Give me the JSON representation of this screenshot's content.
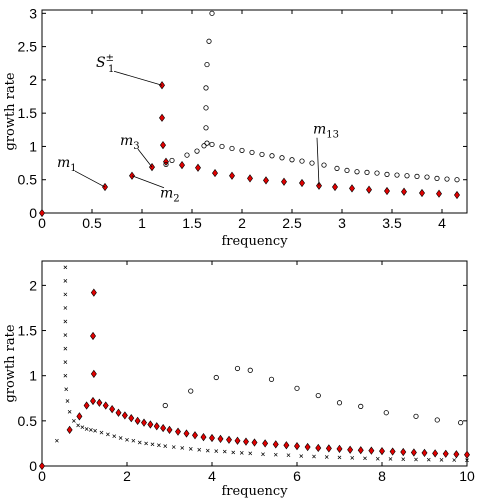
{
  "chart_data": [
    {
      "type": "scatter",
      "xlabel": "frequency",
      "ylabel": "growth rate",
      "xlim": [
        0,
        4.25
      ],
      "ylim": [
        0,
        3.05
      ],
      "xticks": [
        0,
        0.5,
        1,
        1.5,
        2,
        2.5,
        3,
        3.5,
        4
      ],
      "yticks": [
        0,
        0.5,
        1,
        1.5,
        2,
        2.5,
        3
      ],
      "xtick_labels": [
        "0",
        "0.5",
        "1",
        "1.5",
        "2",
        "2.5",
        "3",
        "3.5",
        "4"
      ],
      "ytick_labels": [
        "0",
        "0.5",
        "1",
        "1.5",
        "2",
        "2.5",
        "3"
      ],
      "grid": false,
      "series": [
        {
          "marker": "diamond",
          "color": "#e00000",
          "points": [
            [
              0,
              0
            ],
            [
              0.63,
              0.39
            ],
            [
              0.9,
              0.56
            ],
            [
              1.1,
              0.69
            ],
            [
              1.2,
              1.92
            ],
            [
              1.2,
              1.43
            ],
            [
              1.21,
              1.02
            ],
            [
              1.24,
              0.77
            ],
            [
              1.4,
              0.72
            ],
            [
              1.56,
              0.68
            ],
            [
              1.73,
              0.6
            ],
            [
              1.9,
              0.56
            ],
            [
              2.08,
              0.52
            ],
            [
              2.24,
              0.49
            ],
            [
              2.42,
              0.47
            ],
            [
              2.6,
              0.45
            ],
            [
              2.77,
              0.41
            ],
            [
              2.93,
              0.39
            ],
            [
              3.1,
              0.37
            ],
            [
              3.27,
              0.35
            ],
            [
              3.45,
              0.33
            ],
            [
              3.62,
              0.32
            ],
            [
              3.8,
              0.3
            ],
            [
              3.97,
              0.29
            ],
            [
              4.15,
              0.27
            ]
          ]
        },
        {
          "marker": "circle",
          "color": "#000000",
          "points": [
            [
              1.24,
              0.73
            ],
            [
              1.3,
              0.79
            ],
            [
              1.45,
              0.87
            ],
            [
              1.55,
              0.93
            ],
            [
              1.62,
              1.01
            ],
            [
              1.65,
              1.05
            ],
            [
              1.7,
              3.0
            ],
            [
              1.67,
              2.58
            ],
            [
              1.65,
              2.23
            ],
            [
              1.64,
              1.88
            ],
            [
              1.64,
              1.58
            ],
            [
              1.64,
              1.28
            ],
            [
              1.7,
              1.03
            ],
            [
              1.8,
              1.0
            ],
            [
              1.9,
              0.97
            ],
            [
              2.0,
              0.94
            ],
            [
              2.1,
              0.91
            ],
            [
              2.2,
              0.88
            ],
            [
              2.3,
              0.86
            ],
            [
              2.4,
              0.83
            ],
            [
              2.5,
              0.8
            ],
            [
              2.6,
              0.78
            ],
            [
              2.7,
              0.75
            ],
            [
              2.82,
              0.72
            ],
            [
              2.95,
              0.67
            ],
            [
              3.05,
              0.64
            ],
            [
              3.15,
              0.62
            ],
            [
              3.25,
              0.61
            ],
            [
              3.35,
              0.6
            ],
            [
              3.45,
              0.58
            ],
            [
              3.55,
              0.57
            ],
            [
              3.65,
              0.56
            ],
            [
              3.75,
              0.55
            ],
            [
              3.85,
              0.54
            ],
            [
              3.95,
              0.52
            ],
            [
              4.05,
              0.51
            ],
            [
              4.15,
              0.5
            ]
          ]
        }
      ],
      "annotations": [
        {
          "text": "S",
          "sup": "±",
          "sub": "1",
          "x": 1.2,
          "y": 1.92,
          "dx": -60,
          "dy": -18
        },
        {
          "text": "m",
          "sub": "1",
          "x": 0.63,
          "y": 0.39,
          "dx": -42,
          "dy": -20
        },
        {
          "text": "m",
          "sub": "2",
          "x": 0.9,
          "y": 0.56,
          "dx": 34,
          "dy": 22
        },
        {
          "text": "m",
          "sub": "3",
          "x": 1.1,
          "y": 0.69,
          "dx": -26,
          "dy": -22
        },
        {
          "text": "m",
          "sub": "13",
          "x": 2.77,
          "y": 0.41,
          "dx": 0,
          "dy": -52
        }
      ]
    },
    {
      "type": "scatter",
      "xlabel": "frequency",
      "ylabel": "growth rate",
      "xlim": [
        0,
        10
      ],
      "ylim": [
        0,
        2.27
      ],
      "xticks": [
        0,
        2,
        4,
        6,
        8,
        10
      ],
      "yticks": [
        0,
        0.5,
        1,
        1.5,
        2
      ],
      "xtick_labels": [
        "0",
        "2",
        "4",
        "6",
        "8",
        "10"
      ],
      "ytick_labels": [
        "0",
        "0.5",
        "1",
        "1.5",
        "2"
      ],
      "grid": false,
      "series": [
        {
          "marker": "diamond",
          "color": "#e00000",
          "points": [
            [
              0,
              0
            ],
            [
              0.65,
              0.4
            ],
            [
              0.88,
              0.55
            ],
            [
              1.05,
              0.67
            ],
            [
              1.22,
              1.92
            ],
            [
              1.2,
              1.44
            ],
            [
              1.22,
              1.02
            ],
            [
              1.2,
              0.72
            ],
            [
              1.35,
              0.7
            ],
            [
              1.5,
              0.67
            ],
            [
              1.65,
              0.63
            ],
            [
              1.8,
              0.59
            ],
            [
              1.95,
              0.56
            ],
            [
              2.1,
              0.53
            ],
            [
              2.25,
              0.5
            ],
            [
              2.4,
              0.48
            ],
            [
              2.55,
              0.46
            ],
            [
              2.7,
              0.44
            ],
            [
              2.85,
              0.42
            ],
            [
              3.0,
              0.4
            ],
            [
              3.2,
              0.38
            ],
            [
              3.4,
              0.36
            ],
            [
              3.6,
              0.34
            ],
            [
              3.8,
              0.32
            ],
            [
              4.0,
              0.31
            ],
            [
              4.2,
              0.3
            ],
            [
              4.4,
              0.29
            ],
            [
              4.6,
              0.28
            ],
            [
              4.8,
              0.27
            ],
            [
              5.0,
              0.26
            ],
            [
              5.25,
              0.25
            ],
            [
              5.5,
              0.24
            ],
            [
              5.75,
              0.23
            ],
            [
              6.0,
              0.22
            ],
            [
              6.25,
              0.21
            ],
            [
              6.5,
              0.2
            ],
            [
              6.75,
              0.195
            ],
            [
              7.0,
              0.19
            ],
            [
              7.25,
              0.18
            ],
            [
              7.5,
              0.175
            ],
            [
              7.75,
              0.17
            ],
            [
              8.0,
              0.165
            ],
            [
              8.25,
              0.16
            ],
            [
              8.5,
              0.155
            ],
            [
              8.75,
              0.15
            ],
            [
              9.0,
              0.145
            ],
            [
              9.25,
              0.14
            ],
            [
              9.5,
              0.135
            ],
            [
              9.75,
              0.13
            ],
            [
              10.0,
              0.125
            ]
          ]
        },
        {
          "marker": "circle",
          "color": "#000000",
          "points": [
            [
              2.9,
              0.67
            ],
            [
              3.5,
              0.83
            ],
            [
              4.1,
              0.98
            ],
            [
              4.6,
              1.08
            ],
            [
              4.9,
              1.06
            ],
            [
              5.4,
              0.96
            ],
            [
              6.0,
              0.86
            ],
            [
              6.5,
              0.78
            ],
            [
              7.0,
              0.7
            ],
            [
              7.5,
              0.66
            ],
            [
              8.1,
              0.59
            ],
            [
              8.8,
              0.55
            ],
            [
              9.3,
              0.51
            ],
            [
              9.85,
              0.48
            ]
          ]
        },
        {
          "marker": "x",
          "color": "#000000",
          "points": [
            [
              0.35,
              0.28
            ],
            [
              0.55,
              2.2
            ],
            [
              0.55,
              2.05
            ],
            [
              0.55,
              1.9
            ],
            [
              0.55,
              1.75
            ],
            [
              0.55,
              1.6
            ],
            [
              0.55,
              1.45
            ],
            [
              0.55,
              1.3
            ],
            [
              0.55,
              1.15
            ],
            [
              0.55,
              1.0
            ],
            [
              0.57,
              0.85
            ],
            [
              0.6,
              0.72
            ],
            [
              0.65,
              0.6
            ],
            [
              0.75,
              0.5
            ],
            [
              0.85,
              0.45
            ],
            [
              0.95,
              0.43
            ],
            [
              1.05,
              0.41
            ],
            [
              1.15,
              0.4
            ],
            [
              1.25,
              0.39
            ],
            [
              1.4,
              0.37
            ],
            [
              1.55,
              0.35
            ],
            [
              1.7,
              0.33
            ],
            [
              1.85,
              0.31
            ],
            [
              2.0,
              0.29
            ],
            [
              2.15,
              0.28
            ],
            [
              2.3,
              0.26
            ],
            [
              2.45,
              0.25
            ],
            [
              2.6,
              0.24
            ],
            [
              2.75,
              0.23
            ],
            [
              2.9,
              0.22
            ],
            [
              3.1,
              0.21
            ],
            [
              3.3,
              0.2
            ],
            [
              3.5,
              0.19
            ],
            [
              3.7,
              0.18
            ],
            [
              3.9,
              0.17
            ],
            [
              4.1,
              0.165
            ],
            [
              4.3,
              0.16
            ],
            [
              4.5,
              0.15
            ],
            [
              4.7,
              0.145
            ],
            [
              4.9,
              0.14
            ],
            [
              5.2,
              0.13
            ],
            [
              5.5,
              0.125
            ],
            [
              5.8,
              0.12
            ],
            [
              6.1,
              0.11
            ],
            [
              6.4,
              0.105
            ],
            [
              6.7,
              0.1
            ],
            [
              7.0,
              0.095
            ],
            [
              7.3,
              0.09
            ],
            [
              7.6,
              0.085
            ],
            [
              7.9,
              0.08
            ],
            [
              8.2,
              0.078
            ],
            [
              8.5,
              0.075
            ],
            [
              8.8,
              0.072
            ],
            [
              9.1,
              0.07
            ],
            [
              9.4,
              0.068
            ],
            [
              9.7,
              0.066
            ],
            [
              10.0,
              0.064
            ]
          ]
        }
      ],
      "annotations": []
    }
  ]
}
